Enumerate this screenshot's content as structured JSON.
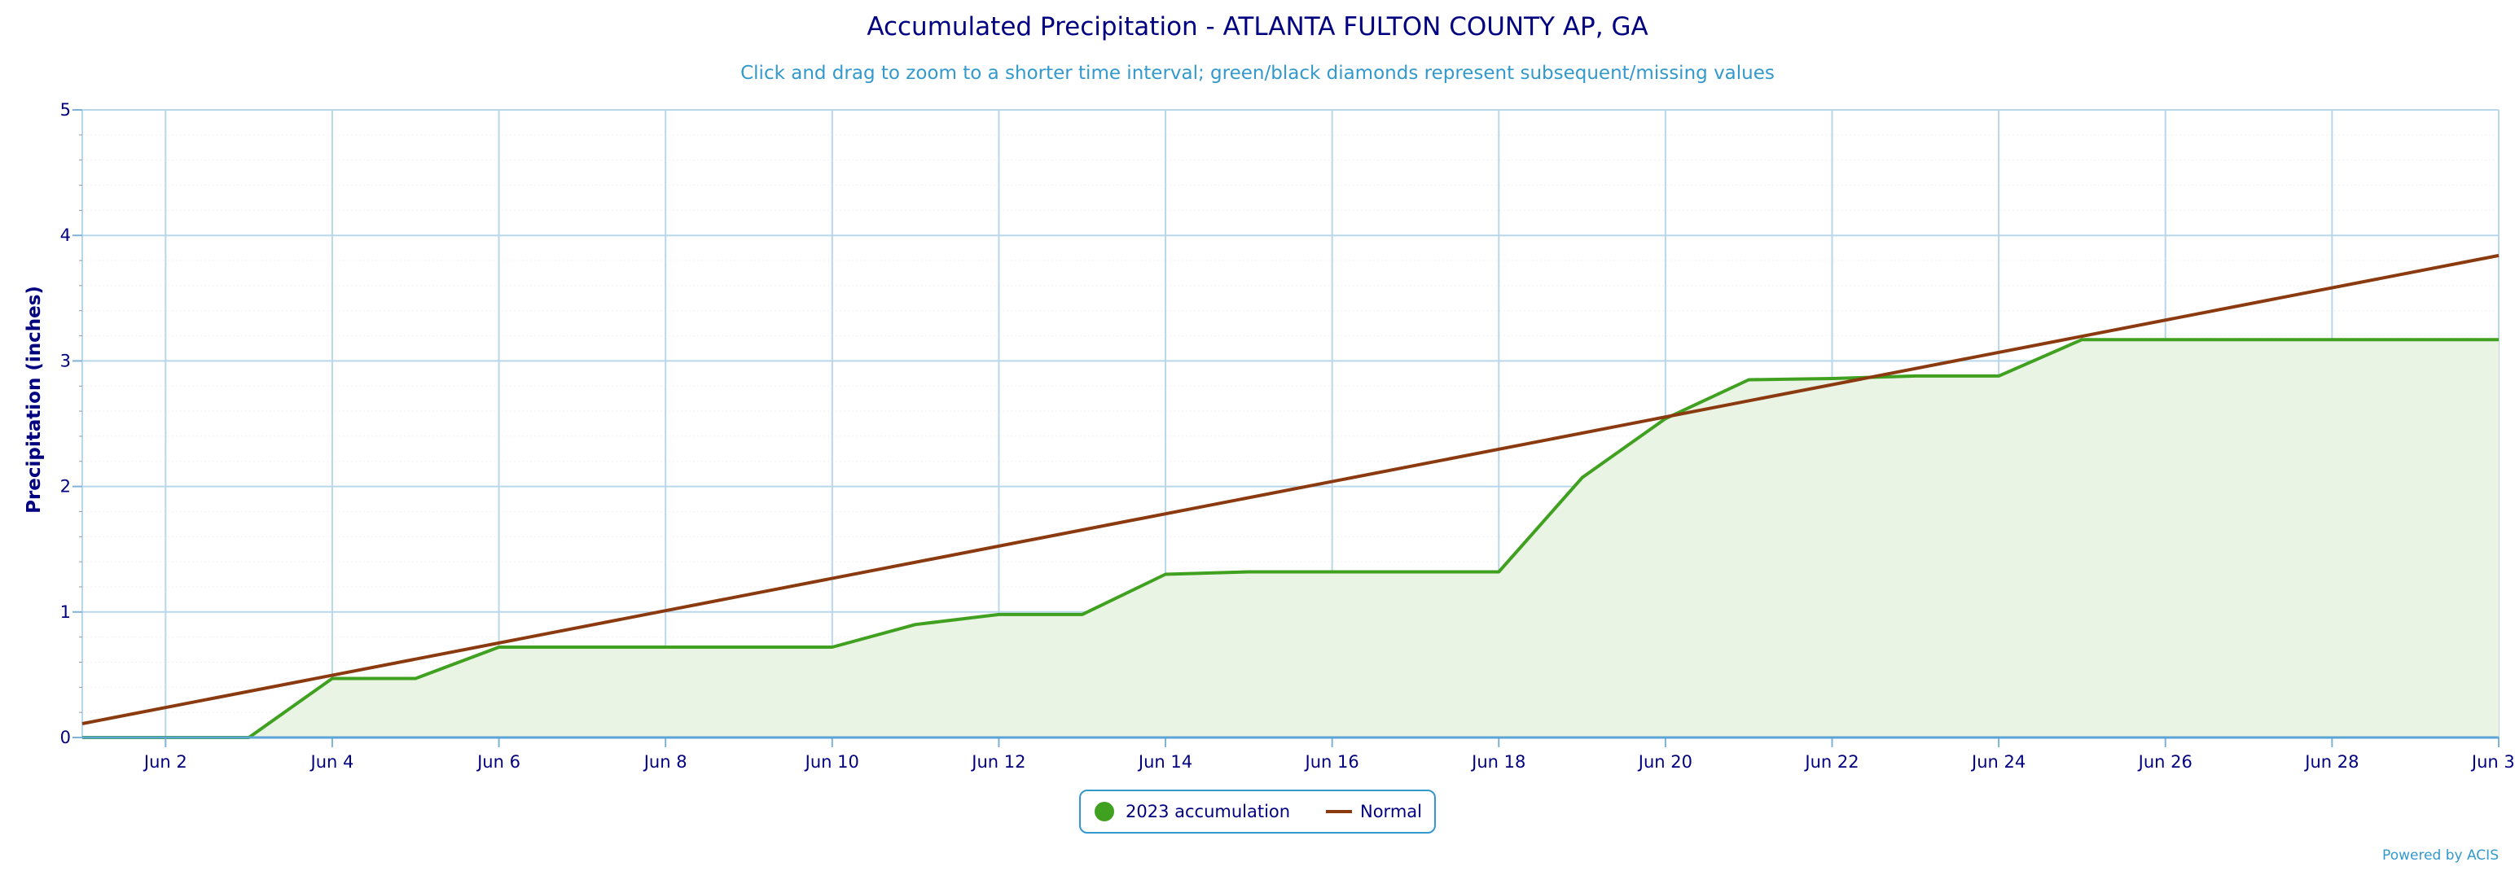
{
  "chart_data": {
    "type": "area",
    "title": "Accumulated Precipitation - ATLANTA FULTON COUNTY AP, GA",
    "subtitle": "Click and drag to zoom to a shorter time interval; green/black diamonds represent subsequent/missing values",
    "xlabel": "",
    "ylabel": "Precipitation (inches)",
    "ylim": [
      0,
      5
    ],
    "yticks": [
      "0",
      "1",
      "2",
      "3",
      "4",
      "5"
    ],
    "xlim": [
      1,
      30
    ],
    "xtick_days": [
      2,
      4,
      6,
      8,
      10,
      12,
      14,
      16,
      18,
      20,
      22,
      24,
      26,
      28,
      30
    ],
    "xticks": [
      "Jun 2",
      "Jun 4",
      "Jun 6",
      "Jun 8",
      "Jun 10",
      "Jun 12",
      "Jun 14",
      "Jun 16",
      "Jun 18",
      "Jun 20",
      "Jun 22",
      "Jun 24",
      "Jun 26",
      "Jun 28",
      "Jun 30"
    ],
    "grid": true,
    "legend_position": "bottom-center",
    "series": [
      {
        "name": "2023 accumulation",
        "color": "#40a020",
        "fill": "#eaf4e4",
        "x": [
          1,
          2,
          3,
          4,
          5,
          6,
          7,
          8,
          9,
          10,
          11,
          12,
          13,
          14,
          15,
          16,
          17,
          18,
          19,
          20,
          21,
          22,
          23,
          24,
          25,
          26,
          27,
          28,
          29,
          30
        ],
        "values": [
          0,
          0,
          0,
          0.47,
          0.47,
          0.72,
          0.72,
          0.72,
          0.72,
          0.72,
          0.9,
          0.98,
          0.98,
          1.3,
          1.32,
          1.32,
          1.32,
          1.32,
          2.07,
          2.54,
          2.85,
          2.86,
          2.88,
          2.88,
          3.17,
          3.17,
          3.17,
          3.17,
          3.17,
          3.17
        ]
      },
      {
        "name": "Normal",
        "color": "#8b3a0f",
        "x": [
          1,
          30
        ],
        "values": [
          0.11,
          3.84
        ]
      }
    ]
  },
  "credit": "Powered by ACIS"
}
